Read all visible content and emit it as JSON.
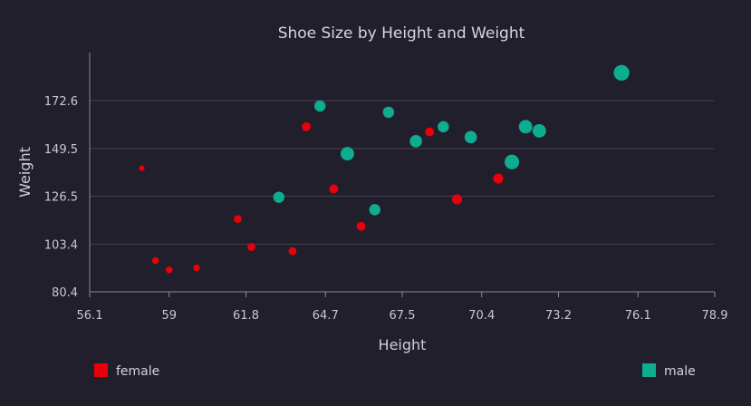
{
  "chart_data": {
    "type": "scatter",
    "title": "Shoe Size by Height and Weight",
    "xlabel": "Height",
    "ylabel": "Weight",
    "xlim": [
      56.1,
      78.9
    ],
    "ylim": [
      80.4,
      195.0
    ],
    "x_ticks": [
      "56.1",
      "59",
      "61.8",
      "64.7",
      "67.5",
      "70.4",
      "73.2",
      "76.1",
      "78.9"
    ],
    "y_ticks": [
      "80.4",
      "103.4",
      "126.5",
      "149.5",
      "172.6"
    ],
    "grid": true,
    "legend_placement": "bottom",
    "size_encoding": "shoe size",
    "series": [
      {
        "name": "female",
        "color": "#e8000b",
        "points": [
          {
            "x": 58.0,
            "y": 140.0,
            "size": 5
          },
          {
            "x": 58.5,
            "y": 95.5,
            "size": 6
          },
          {
            "x": 59.0,
            "y": 91.0,
            "size": 6
          },
          {
            "x": 60.0,
            "y": 92.0,
            "size": 6
          },
          {
            "x": 61.5,
            "y": 115.5,
            "size": 7
          },
          {
            "x": 62.0,
            "y": 102.0,
            "size": 7
          },
          {
            "x": 63.5,
            "y": 100.0,
            "size": 7
          },
          {
            "x": 64.0,
            "y": 160.0,
            "size": 8
          },
          {
            "x": 65.0,
            "y": 130.0,
            "size": 8
          },
          {
            "x": 66.0,
            "y": 112.0,
            "size": 8
          },
          {
            "x": 68.5,
            "y": 157.5,
            "size": 8
          },
          {
            "x": 69.5,
            "y": 125.0,
            "size": 9
          },
          {
            "x": 71.0,
            "y": 135.0,
            "size": 9
          }
        ]
      },
      {
        "name": "male",
        "color": "#0fad8f",
        "points": [
          {
            "x": 63.0,
            "y": 126.0,
            "size": 10
          },
          {
            "x": 64.5,
            "y": 170.0,
            "size": 10
          },
          {
            "x": 65.5,
            "y": 147.0,
            "size": 12
          },
          {
            "x": 66.5,
            "y": 120.0,
            "size": 10
          },
          {
            "x": 67.0,
            "y": 167.0,
            "size": 10
          },
          {
            "x": 68.0,
            "y": 153.0,
            "size": 11
          },
          {
            "x": 69.0,
            "y": 160.0,
            "size": 10
          },
          {
            "x": 70.0,
            "y": 155.0,
            "size": 11
          },
          {
            "x": 71.5,
            "y": 143.0,
            "size": 13
          },
          {
            "x": 72.0,
            "y": 160.0,
            "size": 12
          },
          {
            "x": 72.5,
            "y": 158.0,
            "size": 12
          },
          {
            "x": 75.5,
            "y": 186.0,
            "size": 14
          }
        ]
      }
    ]
  }
}
